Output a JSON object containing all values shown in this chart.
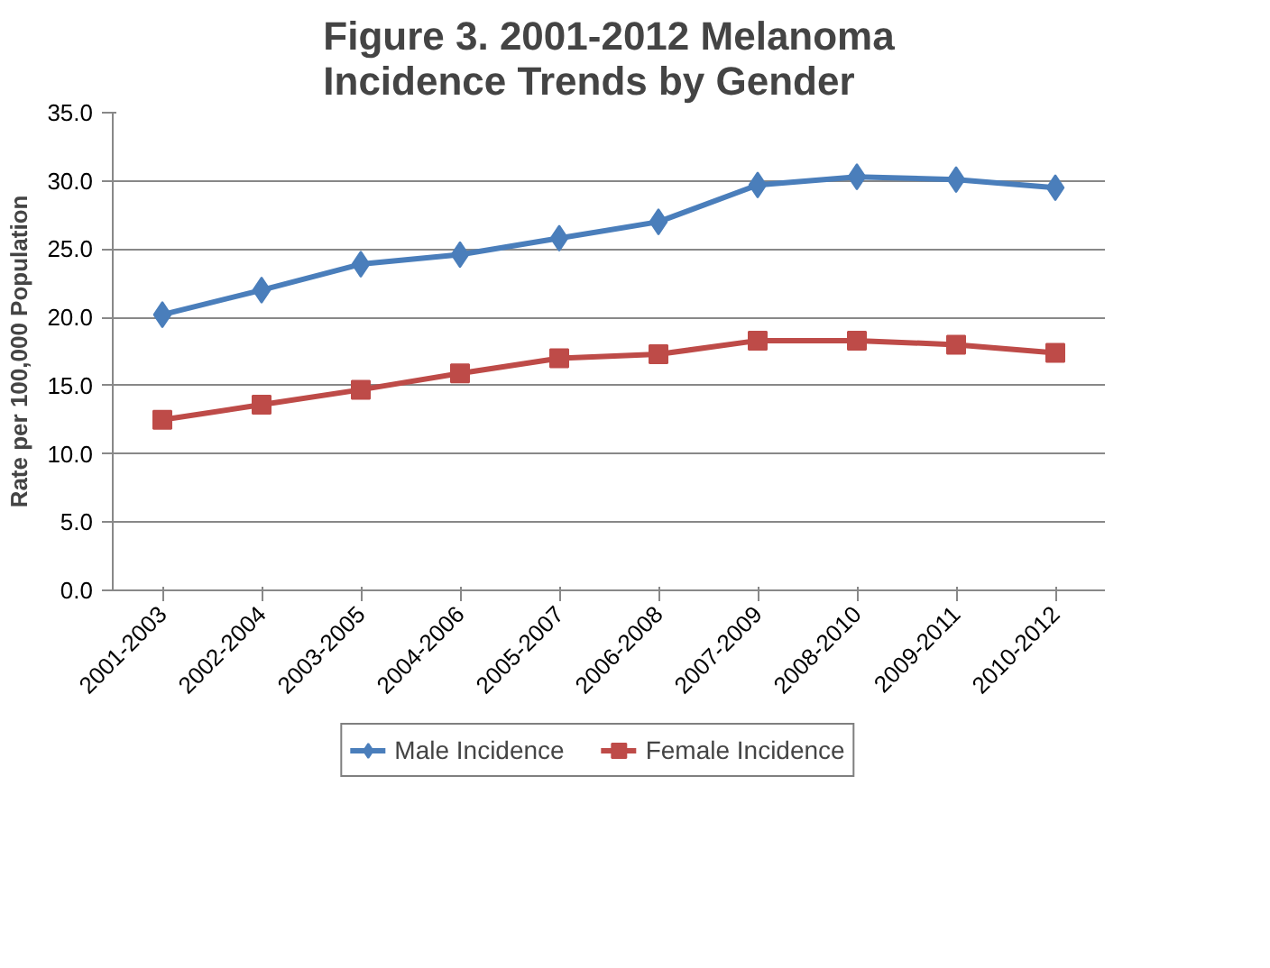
{
  "chart_data": {
    "type": "line",
    "title": "Figure 3. 2001-2012 Melanoma Incidence Trends by Gender",
    "ylabel": "Rate per 100,000 Population",
    "categories": [
      "2001-2003",
      "2002-2004",
      "2003-2005",
      "2004-2006",
      "2005-2007",
      "2006-2008",
      "2007-2009",
      "2008-2010",
      "2009-2011",
      "2010-2012"
    ],
    "series": [
      {
        "name": "Male Incidence",
        "color": "#4a7ebb",
        "marker": "diamond",
        "values": [
          20.2,
          22.0,
          23.9,
          24.6,
          25.8,
          27.0,
          29.7,
          30.3,
          30.1,
          29.5
        ]
      },
      {
        "name": "Female Incidence",
        "color": "#be4b48",
        "marker": "square",
        "values": [
          12.5,
          13.6,
          14.7,
          15.9,
          17.0,
          17.3,
          18.3,
          18.3,
          18.0,
          17.4
        ]
      }
    ],
    "ylim": [
      0,
      35
    ],
    "yticks": [
      {
        "value": 0,
        "label": "0.0"
      },
      {
        "value": 5,
        "label": "5.0"
      },
      {
        "value": 10,
        "label": "10.0"
      },
      {
        "value": 15,
        "label": "15.0"
      },
      {
        "value": 20,
        "label": "20.0"
      },
      {
        "value": 25,
        "label": "25.0"
      },
      {
        "value": 30,
        "label": "30.0"
      },
      {
        "value": 35,
        "label": "35.0"
      }
    ],
    "grid": "y",
    "legend": "bottom",
    "line_style": "solid"
  }
}
